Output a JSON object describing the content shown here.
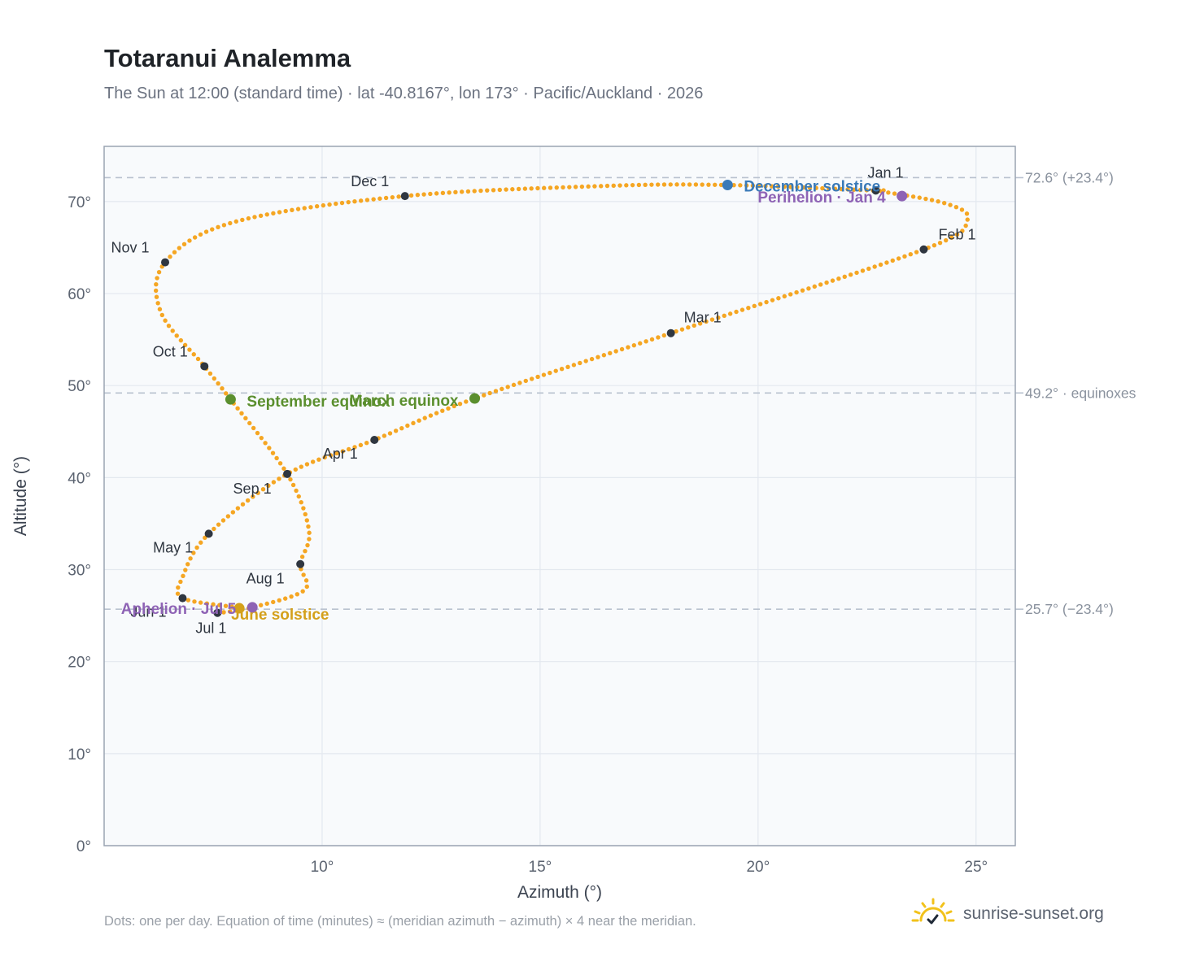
{
  "title": "Totaranui Analemma",
  "subtitle": "The Sun at 12:00 (standard time) · lat -40.8167°, lon 173° · Pacific/Auckland · 2026",
  "footnote": "Dots: one per day. Equation of time (minutes) ≈ (meridian azimuth − azimuth) × 4 near the meridian.",
  "brand": {
    "text": "sunrise-sunset.org",
    "icon": "sun-check-logo-icon"
  },
  "colors": {
    "curve": "#f5a623",
    "month_dot": "#2f3640",
    "equinox": "#5b8f2e",
    "solstice_june": "#d4a01a",
    "solstice_december": "#3a7ab8",
    "apsis": "#8e63b5",
    "reference_line": "#b9c2cf",
    "plot_bg": "#f8fafc",
    "plot_border": "#9aa4b2",
    "grid": "#e3e8ef"
  },
  "chart_data": {
    "type": "scatter",
    "xlabel": "Azimuth (°)",
    "ylabel": "Altitude (°)",
    "xlim": [
      5.0,
      25.9
    ],
    "ylim": [
      0,
      76
    ],
    "x_ticks": [
      {
        "value": 10,
        "label": "10°"
      },
      {
        "value": 15,
        "label": "15°"
      },
      {
        "value": 20,
        "label": "20°"
      },
      {
        "value": 25,
        "label": "25°"
      }
    ],
    "y_ticks": [
      {
        "value": 0,
        "label": "0°"
      },
      {
        "value": 10,
        "label": "10°"
      },
      {
        "value": 20,
        "label": "20°"
      },
      {
        "value": 30,
        "label": "30°"
      },
      {
        "value": 40,
        "label": "40°"
      },
      {
        "value": 50,
        "label": "50°"
      },
      {
        "value": 60,
        "label": "60°"
      },
      {
        "value": 70,
        "label": "70°"
      }
    ],
    "grid": true,
    "reference_lines": [
      {
        "y": 72.6,
        "label": "72.6° (+23.4°)"
      },
      {
        "y": 49.2,
        "label": "49.2° · equinoxes"
      },
      {
        "y": 25.7,
        "label": "25.7° (−23.4°)"
      }
    ],
    "daily_path_anchors": [
      {
        "date": "Jan 1",
        "az": 22.7,
        "alt": 71.2
      },
      {
        "date": "Jan 15",
        "az": 24.3,
        "alt": 69.8
      },
      {
        "date": "Jan 24",
        "az": 24.8,
        "alt": 68.0
      },
      {
        "date": "Feb 1",
        "az": 23.8,
        "alt": 64.8
      },
      {
        "date": "Mar 1",
        "az": 18.0,
        "alt": 55.7
      },
      {
        "date": "Mar 20",
        "az": 13.5,
        "alt": 48.6
      },
      {
        "date": "Apr 1",
        "az": 11.2,
        "alt": 44.1
      },
      {
        "date": "Apr 15",
        "az": 9.2,
        "alt": 40.4
      },
      {
        "date": "May 1",
        "az": 7.4,
        "alt": 33.9
      },
      {
        "date": "May 15",
        "az": 6.8,
        "alt": 29.2
      },
      {
        "date": "Jun 1",
        "az": 6.8,
        "alt": 26.9
      },
      {
        "date": "Jun 21",
        "az": 8.1,
        "alt": 25.8
      },
      {
        "date": "Jul 1",
        "az": 7.6,
        "alt": 25.3
      },
      {
        "date": "Jul 5",
        "az": 8.4,
        "alt": 25.9
      },
      {
        "date": "Jul 15",
        "az": 9.6,
        "alt": 27.8
      },
      {
        "date": "Aug 1",
        "az": 9.5,
        "alt": 30.6
      },
      {
        "date": "Aug 15",
        "az": 9.7,
        "alt": 34.2
      },
      {
        "date": "Sep 1",
        "az": 9.2,
        "alt": 40.4
      },
      {
        "date": "Sep 23",
        "az": 7.9,
        "alt": 48.5
      },
      {
        "date": "Oct 1",
        "az": 7.3,
        "alt": 52.1
      },
      {
        "date": "Oct 15",
        "az": 6.3,
        "alt": 58.0
      },
      {
        "date": "Nov 1",
        "az": 6.4,
        "alt": 63.4
      },
      {
        "date": "Nov 15",
        "az": 8.0,
        "alt": 67.8
      },
      {
        "date": "Dec 1",
        "az": 11.9,
        "alt": 70.6
      },
      {
        "date": "Dec 15",
        "az": 16.5,
        "alt": 71.7
      },
      {
        "date": "Dec 22",
        "az": 19.3,
        "alt": 71.8
      },
      {
        "date": "Dec 31",
        "az": 22.7,
        "alt": 71.2
      }
    ],
    "month_markers": [
      {
        "label": "Jan 1",
        "az": 22.7,
        "alt": 71.2,
        "anchor": "middle",
        "dx": 12,
        "dy": -16
      },
      {
        "label": "Feb 1",
        "az": 23.8,
        "alt": 64.8,
        "anchor": "start",
        "dx": 18,
        "dy": -12
      },
      {
        "label": "Mar 1",
        "az": 18.0,
        "alt": 55.7,
        "anchor": "start",
        "dx": 16,
        "dy": -13
      },
      {
        "label": "Apr 1",
        "az": 11.2,
        "alt": 44.1,
        "anchor": "middle",
        "dx": -42,
        "dy": 23
      },
      {
        "label": "May 1",
        "az": 7.4,
        "alt": 33.9,
        "anchor": "middle",
        "dx": -44,
        "dy": 23
      },
      {
        "label": "Jun 1",
        "az": 6.8,
        "alt": 26.9,
        "anchor": "middle",
        "dx": -42,
        "dy": 23
      },
      {
        "label": "Jul 1",
        "az": 7.6,
        "alt": 25.3,
        "anchor": "middle",
        "dx": -8,
        "dy": 25
      },
      {
        "label": "Aug 1",
        "az": 9.5,
        "alt": 30.6,
        "anchor": "middle",
        "dx": -43,
        "dy": 24
      },
      {
        "label": "Sep 1",
        "az": 9.2,
        "alt": 40.4,
        "anchor": "middle",
        "dx": -43,
        "dy": 24
      },
      {
        "label": "Oct 1",
        "az": 7.3,
        "alt": 52.1,
        "anchor": "middle",
        "dx": -42,
        "dy": -12
      },
      {
        "label": "Nov 1",
        "az": 6.4,
        "alt": 63.4,
        "anchor": "middle",
        "dx": -43,
        "dy": -12
      },
      {
        "label": "Dec 1",
        "az": 11.9,
        "alt": 70.6,
        "anchor": "middle",
        "dx": -43,
        "dy": -12
      }
    ],
    "events": [
      {
        "label": "March equinox",
        "az": 13.5,
        "alt": 48.6,
        "color_key": "equinox",
        "anchor": "end",
        "dx": -20,
        "dy": 9
      },
      {
        "label": "September equinox",
        "az": 7.9,
        "alt": 48.5,
        "color_key": "equinox",
        "anchor": "start",
        "dx": 20,
        "dy": 9
      },
      {
        "label": "June solstice",
        "az": 8.1,
        "alt": 25.8,
        "color_key": "solstice_june",
        "anchor": "start",
        "dx": -10,
        "dy": 14
      },
      {
        "label": "December solstice",
        "az": 19.3,
        "alt": 71.8,
        "color_key": "solstice_december",
        "anchor": "start",
        "dx": 20,
        "dy": 8
      },
      {
        "label": "Perihelion · Jan 4",
        "az": 23.3,
        "alt": 70.6,
        "color_key": "apsis",
        "anchor": "end",
        "dx": -20,
        "dy": 8
      },
      {
        "label": "Aphelion · Jul 5",
        "az": 8.4,
        "alt": 25.9,
        "color_key": "apsis",
        "anchor": "end",
        "dx": -20,
        "dy": 8
      }
    ]
  }
}
